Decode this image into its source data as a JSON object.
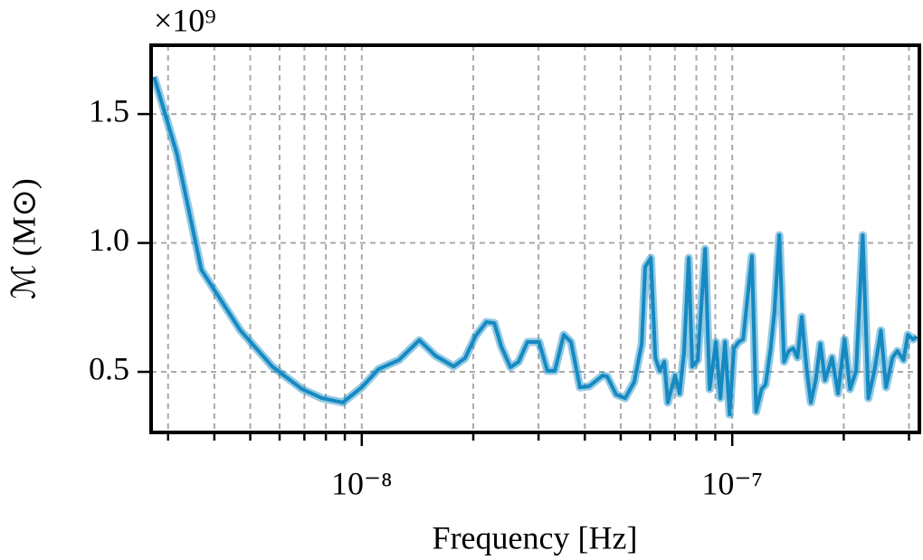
{
  "chart_data": {
    "type": "line",
    "x_label": "Frequency [Hz]",
    "y_label": "ℳ (M⊙)",
    "y_multiplier": "×10⁹",
    "xscale": "log",
    "grid": true,
    "xlim": [
      2.7e-09,
      3.2e-07
    ],
    "ylim": [
      0.265,
      1.767
    ],
    "xticks": [
      {
        "value": 1e-08,
        "label": "10⁻⁸"
      },
      {
        "value": 1e-07,
        "label": "10⁻⁷"
      }
    ],
    "xminor_ticks": [
      3e-09,
      4e-09,
      5e-09,
      6e-09,
      7e-09,
      8e-09,
      9e-09,
      2e-08,
      3e-08,
      4e-08,
      5e-08,
      6e-08,
      7e-08,
      8e-08,
      9e-08,
      2e-07,
      3e-07
    ],
    "yticks": [
      0.5,
      {
        "value": 1.0,
        "label": "1.0"
      },
      1.5
    ],
    "series": [
      {
        "color": "#1589c2",
        "x": [
          2.75e-09,
          3.17e-09,
          3.69e-09,
          4.7e-09,
          5.73e-09,
          6.9e-09,
          7.8e-09,
          8.89e-09,
          1e-08,
          1.11e-08,
          1.26e-08,
          1.43e-08,
          1.58e-08,
          1.77e-08,
          1.9e-08,
          2.03e-08,
          2.17e-08,
          2.28e-08,
          2.38e-08,
          2.52e-08,
          2.65e-08,
          2.8e-08,
          3.01e-08,
          3.17e-08,
          3.32e-08,
          3.51e-08,
          3.67e-08,
          3.88e-08,
          4.11e-08,
          4.47e-08,
          4.6e-08,
          4.86e-08,
          5.14e-08,
          5.44e-08,
          5.7e-08,
          5.82e-08,
          6.03e-08,
          6.2e-08,
          6.37e-08,
          6.56e-08,
          6.7e-08,
          7.01e-08,
          7.21e-08,
          7.41e-08,
          7.63e-08,
          7.8e-08,
          8.07e-08,
          8.45e-08,
          8.69e-08,
          9.03e-08,
          9.29e-08,
          9.56e-08,
          9.84e-08,
          1.01e-07,
          1.04e-07,
          1.07e-07,
          1.13e-07,
          1.16e-07,
          1.2e-07,
          1.23e-07,
          1.27e-07,
          1.3e-07,
          1.34e-07,
          1.38e-07,
          1.42e-07,
          1.46e-07,
          1.5e-07,
          1.54e-07,
          1.59e-07,
          1.63e-07,
          1.68e-07,
          1.73e-07,
          1.78e-07,
          1.86e-07,
          1.93e-07,
          2.01e-07,
          2.08e-07,
          2.16e-07,
          2.25e-07,
          2.33e-07,
          2.42e-07,
          2.52e-07,
          2.6e-07,
          2.71e-07,
          2.79e-07,
          2.9e-07,
          2.98e-07,
          3.08e-07,
          3.15e-07
        ],
        "values": [
          1.644,
          1.346,
          0.896,
          0.661,
          0.521,
          0.433,
          0.398,
          0.381,
          0.44,
          0.511,
          0.546,
          0.623,
          0.563,
          0.521,
          0.553,
          0.64,
          0.693,
          0.689,
          0.598,
          0.518,
          0.539,
          0.616,
          0.616,
          0.504,
          0.504,
          0.644,
          0.616,
          0.44,
          0.444,
          0.486,
          0.482,
          0.412,
          0.398,
          0.461,
          0.609,
          0.907,
          0.942,
          0.556,
          0.504,
          0.539,
          0.381,
          0.486,
          0.416,
          0.574,
          0.942,
          0.521,
          0.546,
          0.977,
          0.433,
          0.616,
          0.398,
          0.616,
          0.335,
          0.591,
          0.616,
          0.626,
          0.949,
          0.346,
          0.433,
          0.451,
          0.591,
          0.732,
          1.03,
          0.539,
          0.581,
          0.591,
          0.556,
          0.714,
          0.504,
          0.381,
          0.468,
          0.609,
          0.468,
          0.556,
          0.416,
          0.626,
          0.433,
          0.504,
          1.03,
          0.398,
          0.504,
          0.661,
          0.44,
          0.556,
          0.581,
          0.546,
          0.644,
          0.626,
          0.637
        ]
      }
    ]
  }
}
